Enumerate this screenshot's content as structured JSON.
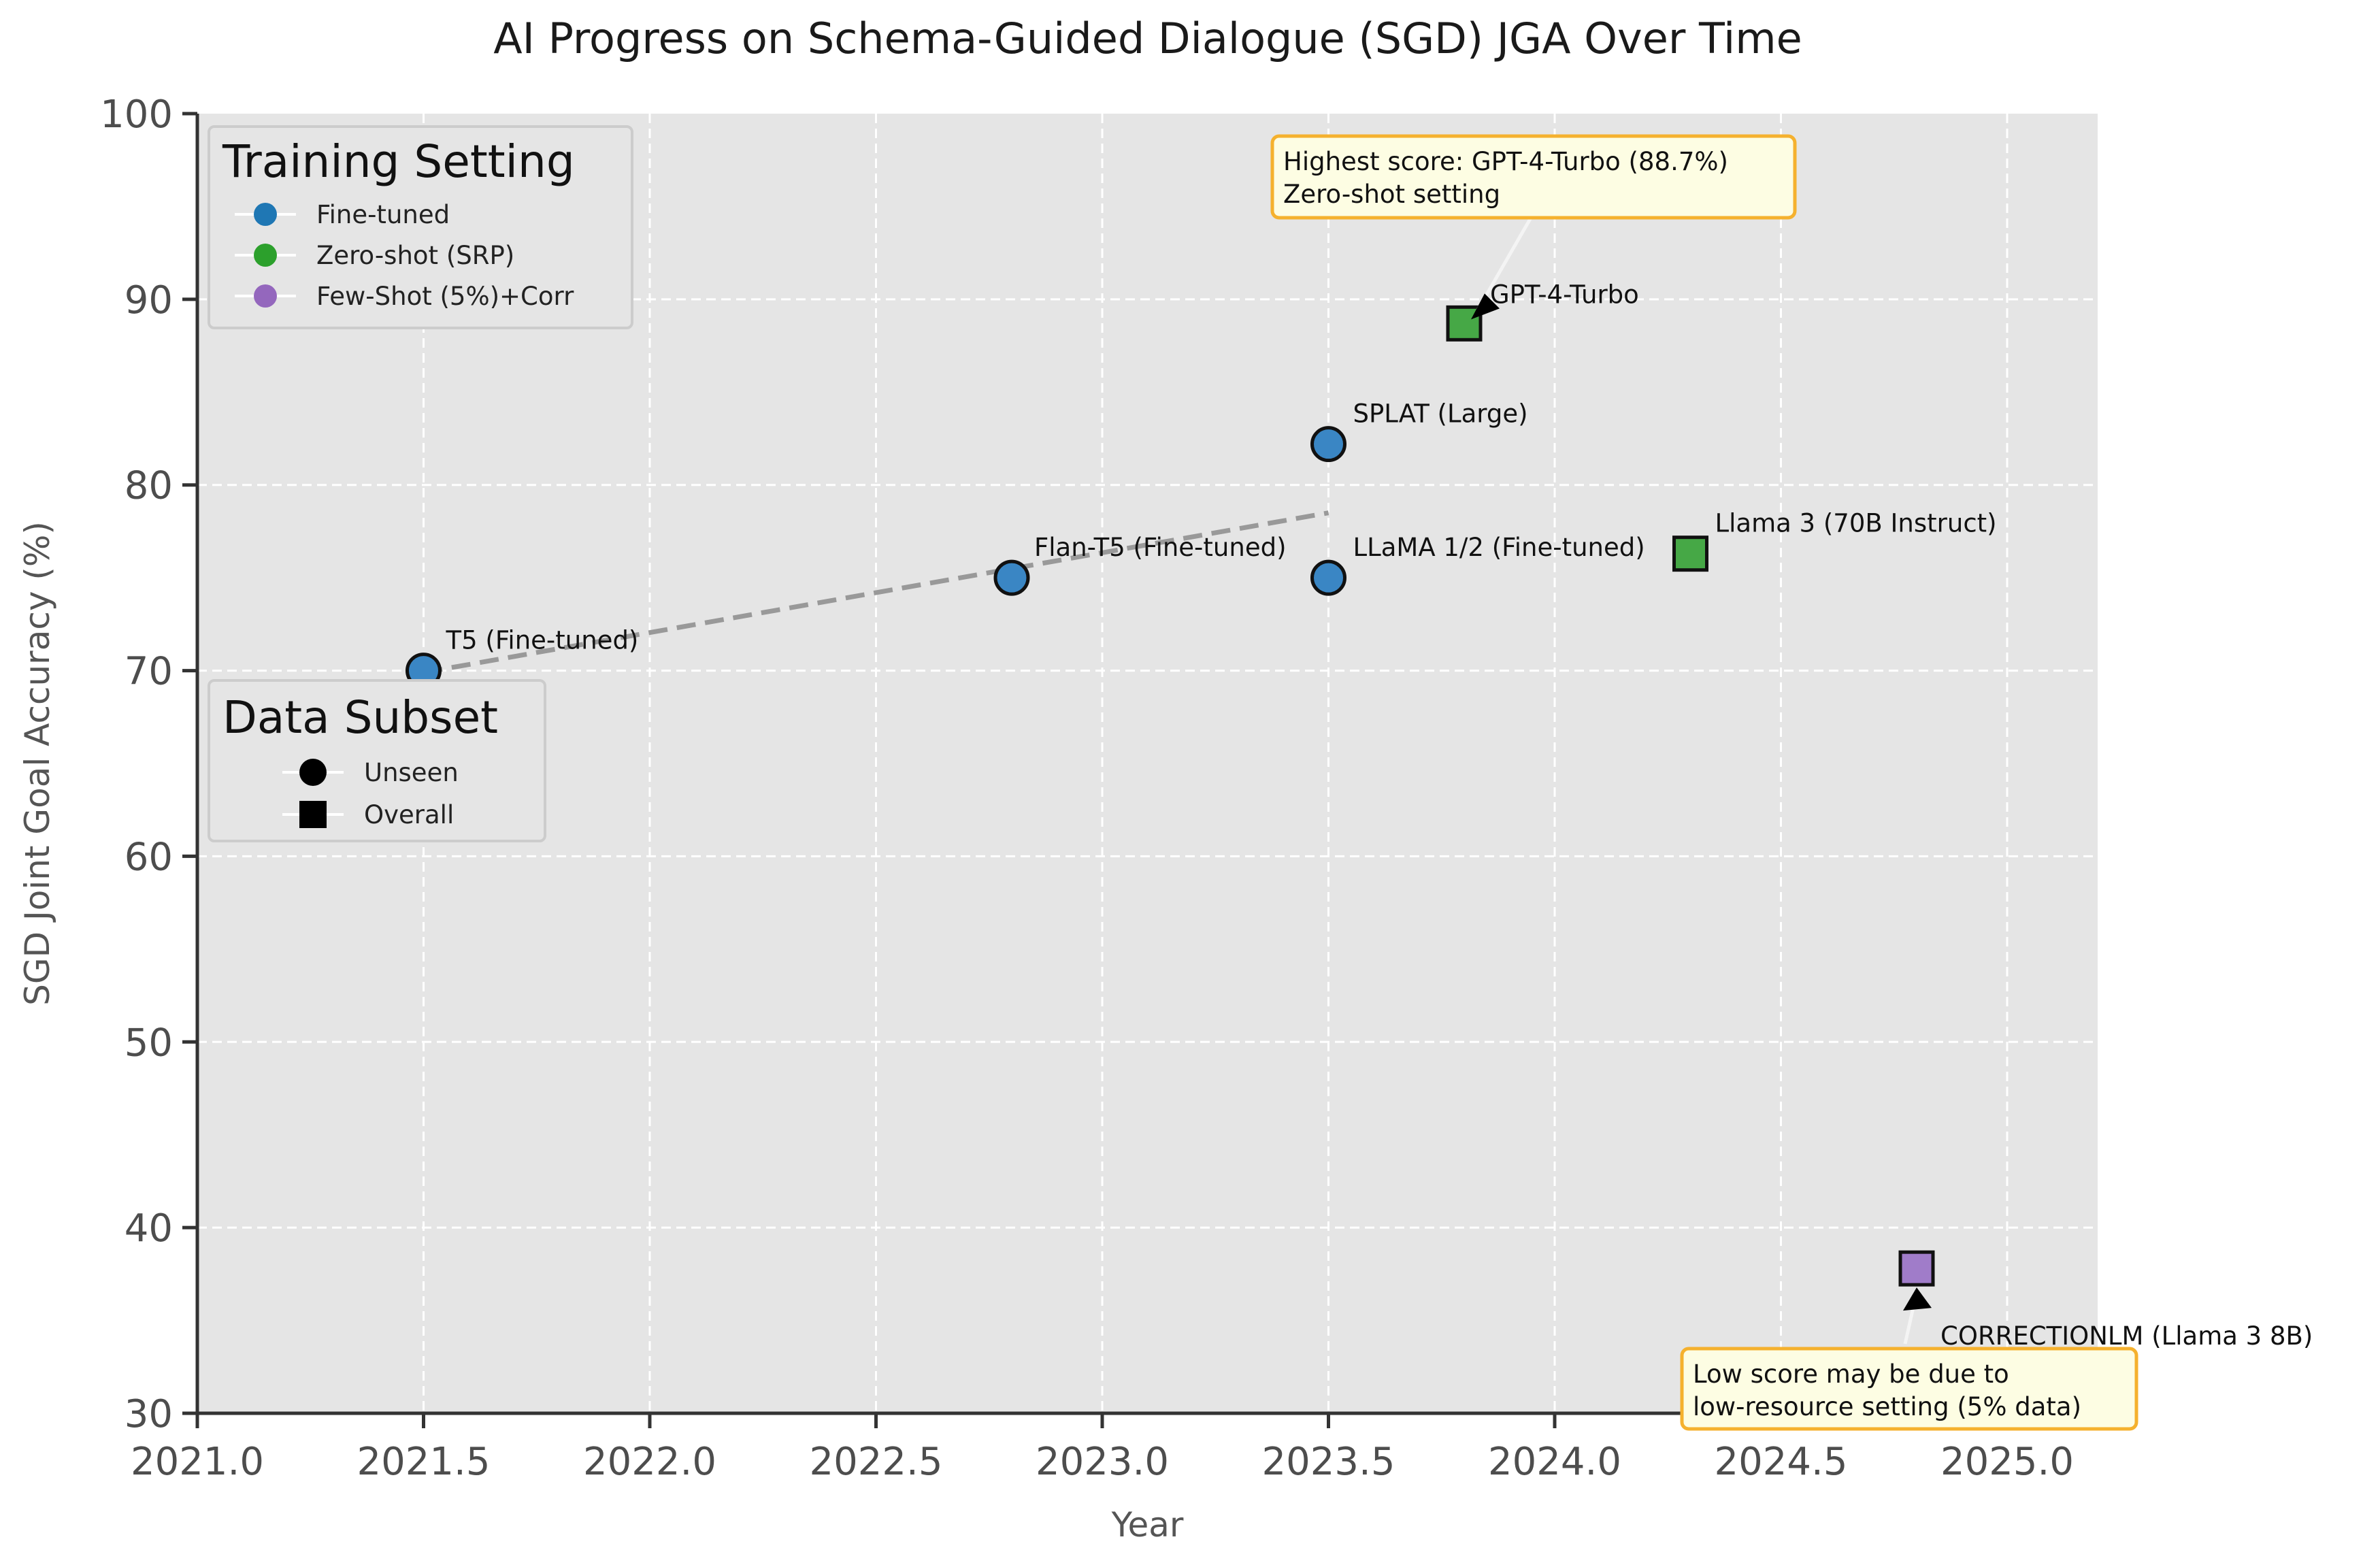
{
  "chart_data": {
    "type": "scatter",
    "title": "AI Progress on Schema-Guided Dialogue (SGD) JGA Over Time",
    "xlabel": "Year",
    "ylabel": "SGD Joint Goal Accuracy (%)",
    "xlim": [
      2021.0,
      2025.2
    ],
    "ylim": [
      30,
      100
    ],
    "x_ticks": [
      "2021.0",
      "2021.5",
      "2022.0",
      "2022.5",
      "2023.0",
      "2023.5",
      "2024.0",
      "2024.5",
      "2025.0"
    ],
    "y_ticks": [
      "30",
      "40",
      "50",
      "60",
      "70",
      "80",
      "90",
      "100"
    ],
    "grid": true,
    "points": [
      {
        "label": "T5 (Fine-tuned)",
        "x": 2021.5,
        "y": 70.0,
        "setting": "Fine-tuned",
        "subset": "Unseen"
      },
      {
        "label": "Flan-T5 (Fine-tuned)",
        "x": 2022.8,
        "y": 75.0,
        "setting": "Fine-tuned",
        "subset": "Unseen"
      },
      {
        "label": "SPLAT (Large)",
        "x": 2023.5,
        "y": 82.2,
        "setting": "Fine-tuned",
        "subset": "Unseen"
      },
      {
        "label": "LLaMA 1/2 (Fine-tuned)",
        "x": 2023.5,
        "y": 75.0,
        "setting": "Fine-tuned",
        "subset": "Unseen"
      },
      {
        "label": "GPT-4-Turbo",
        "x": 2023.8,
        "y": 88.7,
        "setting": "Zero-shot (SRP)",
        "subset": "Overall"
      },
      {
        "label": "Llama 3 (70B Instruct)",
        "x": 2024.3,
        "y": 76.3,
        "setting": "Zero-shot (SRP)",
        "subset": "Overall"
      },
      {
        "label": "CORRECTIONLM (Llama 3 8B)",
        "x": 2024.8,
        "y": 37.8,
        "setting": "Few-Shot (5%)+Corr",
        "subset": "Overall"
      }
    ],
    "trend_line": {
      "x": [
        2021.5,
        2023.5
      ],
      "y": [
        69.9,
        78.5
      ]
    },
    "annotations": [
      {
        "text": [
          "Highest score: GPT-4-Turbo (88.7%)",
          "Zero-shot setting"
        ],
        "target": "GPT-4-Turbo"
      },
      {
        "text": [
          "Low score may be due to",
          "low-resource setting (5% data)"
        ],
        "target": "CORRECTIONLM (Llama 3 8B)"
      }
    ],
    "legend_setting": {
      "title": "Training Setting",
      "placement": "top-left",
      "items": [
        {
          "label": "Fine-tuned",
          "color": "#1f77b4"
        },
        {
          "label": "Zero-shot (SRP)",
          "color": "#2ca02c"
        },
        {
          "label": "Few-Shot (5%)+Corr",
          "color": "#9467bd"
        }
      ]
    },
    "legend_subset": {
      "title": "Data Subset",
      "placement": "left",
      "items": [
        {
          "label": "Unseen",
          "marker": "circle"
        },
        {
          "label": "Overall",
          "marker": "square"
        }
      ]
    },
    "colors": {
      "Fine-tuned": "#3a86c4",
      "Zero-shot (SRP)": "#46a846",
      "Few-Shot (5%)+Corr": "#a07cc9",
      "plot_background": "#e5e5e5",
      "grid": "#ffffff",
      "trend": "#999999",
      "note_fill": "#fdfde3",
      "note_border": "#f5b12e"
    }
  }
}
